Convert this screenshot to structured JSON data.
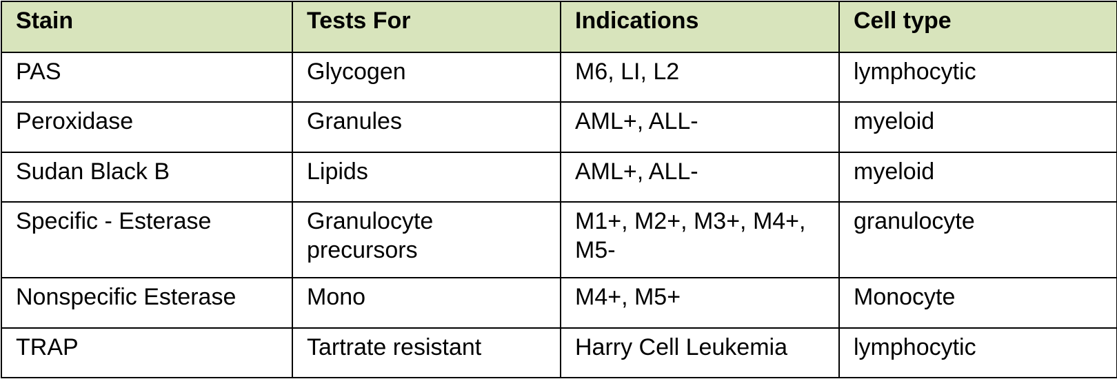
{
  "table": {
    "header": [
      "Stain",
      "Tests For",
      "Indications",
      "Cell type"
    ],
    "rows": [
      [
        "PAS",
        "Glycogen",
        "M6, LI, L2",
        "lymphocytic"
      ],
      [
        "Peroxidase",
        "Granules",
        "AML+, ALL-",
        "myeloid"
      ],
      [
        "Sudan Black B",
        "Lipids",
        "AML+, ALL-",
        "myeloid"
      ],
      [
        "Specific - Esterase",
        "Granulocyte precursors",
        "M1+, M2+, M3+, M4+, M5-",
        "granulocyte"
      ],
      [
        "Nonspecific Esterase",
        "Mono",
        "M4+, M5+",
        "Monocyte"
      ],
      [
        "TRAP",
        "Tartrate resistant",
        "Harry Cell Leukemia",
        "lymphocytic"
      ]
    ]
  }
}
